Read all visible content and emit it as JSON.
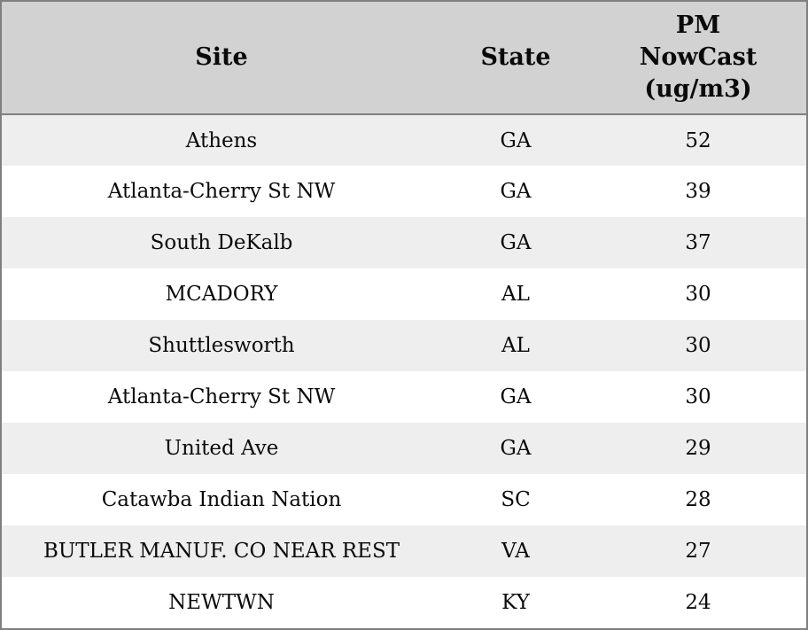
{
  "colors": {
    "header_bg": "#d2d2d2",
    "row_alt_bg": "#eeeeee",
    "row_bg": "#ffffff",
    "border": "#7f7f7f",
    "text": "#0a0a0a"
  },
  "chart_data": {
    "type": "table",
    "title": "",
    "columns": {
      "site": "Site",
      "state": "State",
      "value": "PM NowCast (ug/m3)"
    },
    "rows": [
      {
        "site": "Athens",
        "state": "GA",
        "value": "52"
      },
      {
        "site": "Atlanta-Cherry St NW",
        "state": "GA",
        "value": "39"
      },
      {
        "site": "South DeKalb",
        "state": "GA",
        "value": "37"
      },
      {
        "site": "MCADORY",
        "state": "AL",
        "value": "30"
      },
      {
        "site": "Shuttlesworth",
        "state": "AL",
        "value": "30"
      },
      {
        "site": "Atlanta-Cherry St NW",
        "state": "GA",
        "value": "30"
      },
      {
        "site": "United Ave",
        "state": "GA",
        "value": "29"
      },
      {
        "site": "Catawba Indian Nation",
        "state": "SC",
        "value": "28"
      },
      {
        "site": "BUTLER MANUF. CO NEAR REST",
        "state": "VA",
        "value": "27"
      },
      {
        "site": "NEWTWN",
        "state": "KY",
        "value": "24"
      }
    ]
  }
}
